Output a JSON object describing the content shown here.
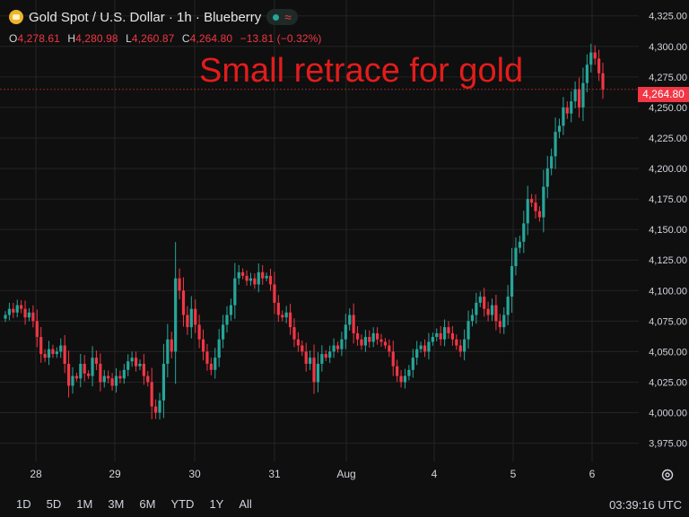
{
  "header": {
    "symbol_title": "Gold Spot / U.S. Dollar · 1h · Blueberry",
    "icons": {
      "logo": "gold-logo-icon",
      "status": "market-open-dot-icon",
      "wave": "wave-icon"
    }
  },
  "ohlc": {
    "o_label": "O",
    "o": "4,278.61",
    "h_label": "H",
    "h": "4,280.98",
    "l_label": "L",
    "l": "4,260.87",
    "c_label": "C",
    "c": "4,264.80",
    "change": "−13.81 (−0.32%)"
  },
  "annotation": "Small retrace for gold",
  "price_tag": "4,264.80",
  "ranges": [
    "1D",
    "5D",
    "1M",
    "3M",
    "6M",
    "YTD",
    "1Y",
    "All"
  ],
  "clock": "03:39:16 UTC",
  "colors": {
    "up": "#26a69a",
    "down": "#f23645",
    "background": "#0f0f0f",
    "grid": "#242424",
    "annotation": "#e31c1c"
  },
  "chart_data": {
    "type": "candlestick",
    "interval": "1h",
    "x_tick_labels": [
      "28",
      "29",
      "30",
      "31",
      "Aug",
      "4",
      "5",
      "6"
    ],
    "y_ticks": [
      3975,
      4000,
      4025,
      4050,
      4075,
      4100,
      4125,
      4150,
      4175,
      4200,
      4225,
      4250,
      4275,
      4300,
      4325
    ],
    "y_tick_labels": [
      "3,975.00",
      "4,000.00",
      "4,025.00",
      "4,050.00",
      "4,075.00",
      "4,100.00",
      "4,125.00",
      "4,150.00",
      "4,175.00",
      "4,200.00",
      "4,225.00",
      "4,250.00",
      "4,275.00",
      "4,300.00",
      "4,325.00"
    ],
    "ylim": [
      3960,
      4338
    ],
    "last_price": 4264.8,
    "grid": true,
    "closes": [
      4080,
      4085,
      4082,
      4088,
      4085,
      4078,
      4082,
      4075,
      4062,
      4048,
      4045,
      4052,
      4048,
      4050,
      4055,
      4040,
      4022,
      4030,
      4028,
      4040,
      4032,
      4030,
      4045,
      4040,
      4025,
      4030,
      4028,
      4022,
      4030,
      4028,
      4035,
      4042,
      4045,
      4038,
      4040,
      4030,
      4025,
      4005,
      4000,
      4010,
      4040,
      4060,
      4050,
      4110,
      4100,
      4080,
      4070,
      4085,
      4072,
      4060,
      4050,
      4040,
      4035,
      4045,
      4060,
      4072,
      4080,
      4088,
      4110,
      4115,
      4112,
      4108,
      4110,
      4105,
      4115,
      4110,
      4112,
      4105,
      4090,
      4080,
      4078,
      4082,
      4070,
      4060,
      4055,
      4050,
      4040,
      4045,
      4025,
      4040,
      4048,
      4045,
      4050,
      4055,
      4052,
      4060,
      4072,
      4080,
      4065,
      4060,
      4055,
      4062,
      4058,
      4065,
      4060,
      4058,
      4055,
      4050,
      4038,
      4030,
      4025,
      4030,
      4035,
      4045,
      4052,
      4055,
      4050,
      4058,
      4062,
      4065,
      4060,
      4070,
      4065,
      4060,
      4055,
      4050,
      4060,
      4075,
      4080,
      4090,
      4095,
      4085,
      4080,
      4088,
      4075,
      4070,
      4080,
      4095,
      4120,
      4135,
      4140,
      4155,
      4175,
      4172,
      4165,
      4160,
      4185,
      4200,
      4210,
      4230,
      4235,
      4250,
      4245,
      4255,
      4265,
      4250,
      4270,
      4285,
      4295,
      4290,
      4278,
      4264.8
    ]
  }
}
